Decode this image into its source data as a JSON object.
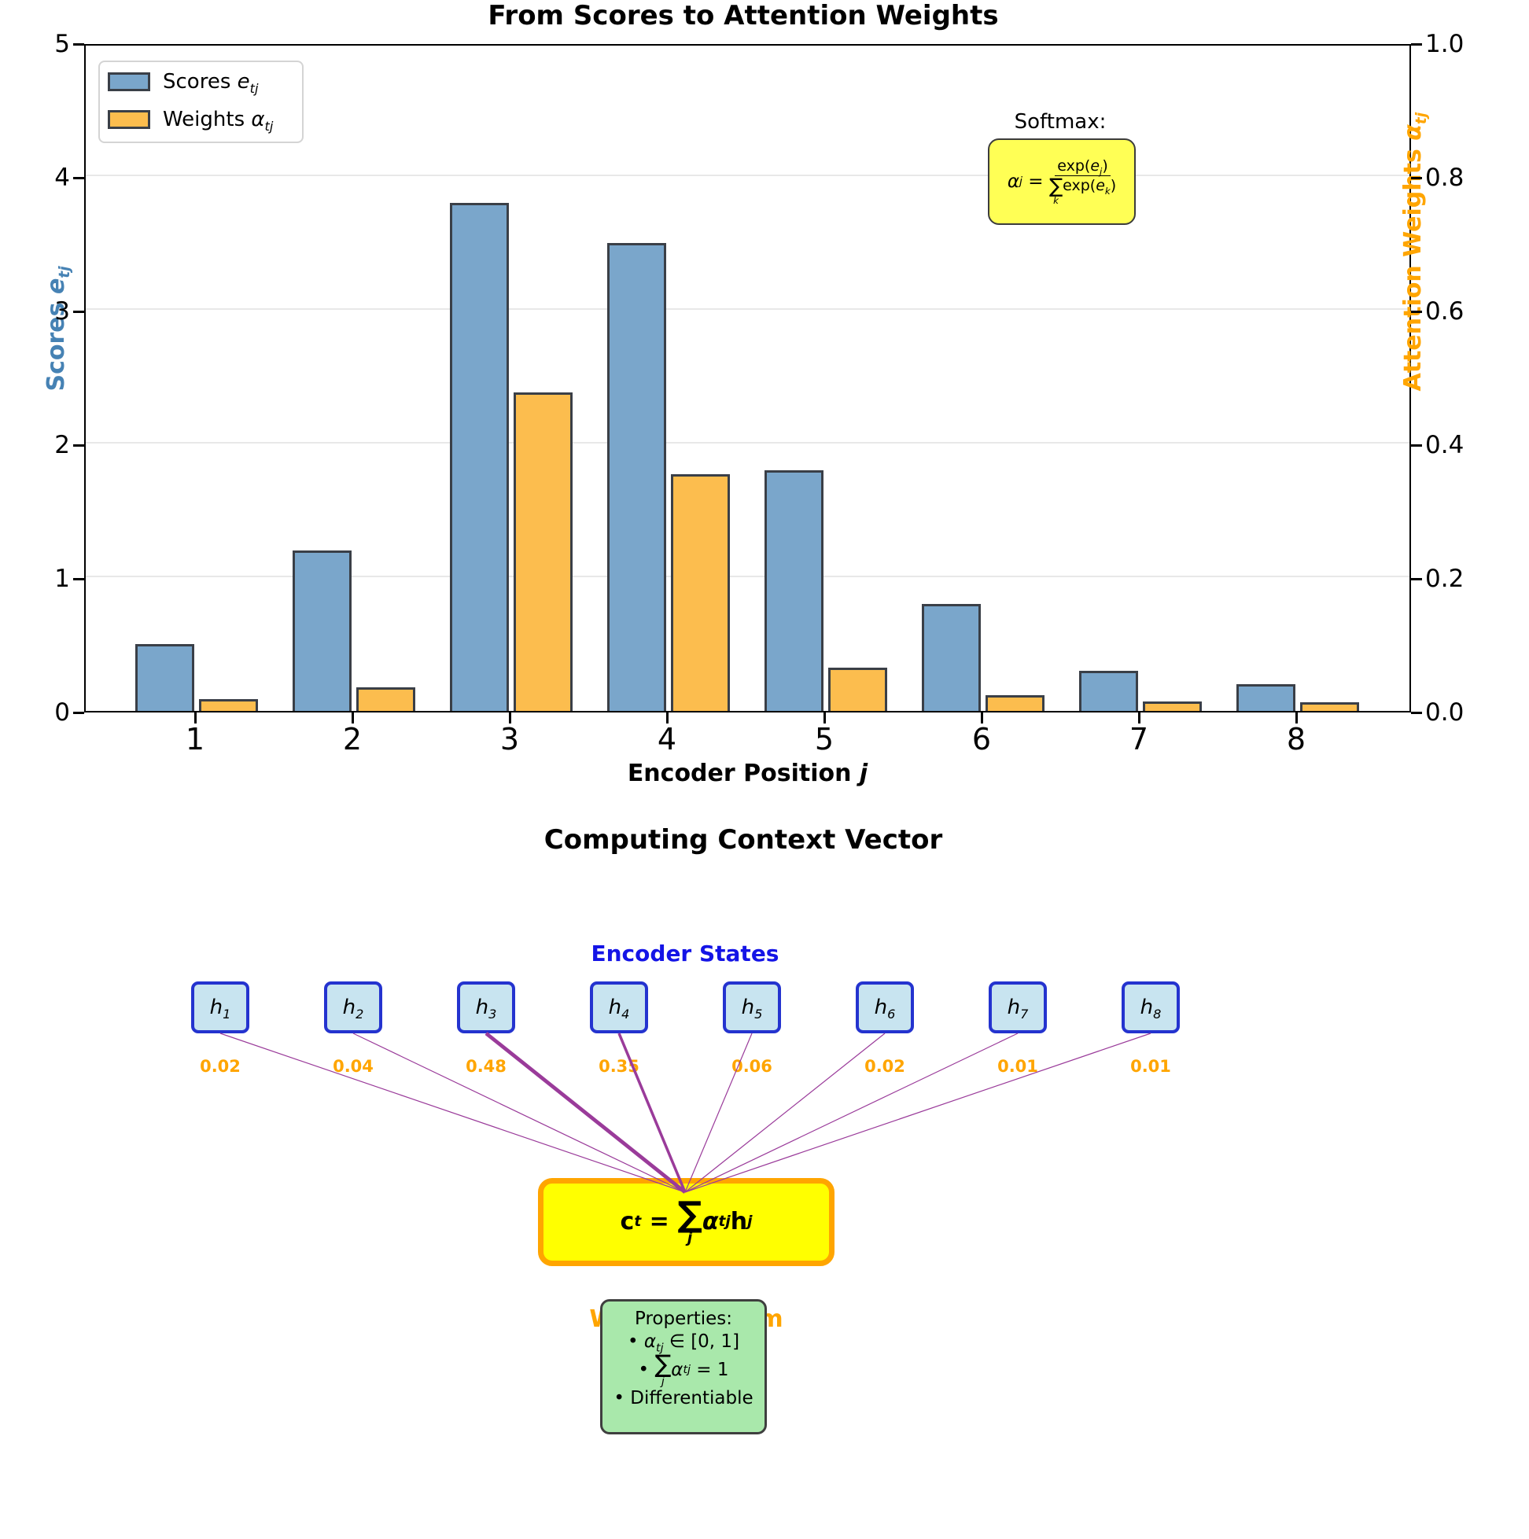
{
  "chart_data": {
    "type": "bar",
    "title": "From Scores to Attention Weights",
    "xlabel": {
      "text": "Encoder Position ",
      "math": "j"
    },
    "ylabel_left": {
      "text": "Scores ",
      "math": "e",
      "sub": "tj",
      "color": "#4682b4"
    },
    "ylabel_right": {
      "text": "Attention Weights ",
      "math": "α",
      "sub": "tj",
      "color": "#ffa500"
    },
    "categories": [
      "1",
      "2",
      "3",
      "4",
      "5",
      "6",
      "7",
      "8"
    ],
    "series": [
      {
        "name": "Scores e_tj",
        "axis": "left",
        "color": "#7aa6cb",
        "values": [
          0.5,
          1.2,
          3.8,
          3.5,
          1.8,
          0.8,
          0.3,
          0.2
        ]
      },
      {
        "name": "Weights α_tj",
        "axis": "right",
        "color": "#fcbd4e",
        "values": [
          0.018,
          0.035,
          0.477,
          0.354,
          0.065,
          0.024,
          0.014,
          0.013
        ]
      }
    ],
    "ylim_left": [
      0,
      5
    ],
    "ylim_right": [
      0,
      1
    ],
    "yticks_left": [
      "5",
      "4",
      "3",
      "2",
      "1",
      "0"
    ],
    "yticks_right": [
      "1.0",
      "0.8",
      "0.6",
      "0.4",
      "0.2",
      "0.0"
    ],
    "grid": true,
    "legend_position": "upper left"
  },
  "legend": {
    "entries": [
      {
        "text": "Scores ",
        "math": "e",
        "sub": "tj",
        "color": "#7aa6cb"
      },
      {
        "text": "Weights ",
        "math": "α",
        "sub": "tj",
        "color": "#fcbd4e"
      }
    ]
  },
  "softmax_note": {
    "heading": "Softmax:",
    "alpha": "α",
    "alpha_sub": "j",
    "equals": " = ",
    "num_pre": "exp(",
    "num_var": "e",
    "num_sub": "j",
    "num_post": ")",
    "den_sigma": "∑",
    "den_sigma_sub": "k",
    "den_pre": "exp(",
    "den_var": "e",
    "den_sub": "k",
    "den_post": ")"
  },
  "diagram": {
    "title": "Computing Context Vector",
    "encoder_states_title": "Encoder States",
    "nodes": [
      {
        "var": "h",
        "sub": "1",
        "weight": "0.02"
      },
      {
        "var": "h",
        "sub": "2",
        "weight": "0.04"
      },
      {
        "var": "h",
        "sub": "3",
        "weight": "0.48"
      },
      {
        "var": "h",
        "sub": "4",
        "weight": "0.35"
      },
      {
        "var": "h",
        "sub": "5",
        "weight": "0.06"
      },
      {
        "var": "h",
        "sub": "6",
        "weight": "0.02"
      },
      {
        "var": "h",
        "sub": "7",
        "weight": "0.01"
      },
      {
        "var": "h",
        "sub": "8",
        "weight": "0.01"
      }
    ],
    "line_color": "#9a3b9a",
    "context_formula": {
      "c": "c",
      "c_sub": "t",
      "equals": " = ",
      "sigma": "∑",
      "sigma_sub": "j",
      "alpha": "α",
      "alpha_sub": "tj",
      "h": "h",
      "h_sub": "j"
    },
    "weighted_sum_label": "Weighted Sum",
    "properties": {
      "heading": "Properties:",
      "bullet1": {
        "bullet": "• ",
        "alpha": "α",
        "sub": "tj",
        "rest": " ∈ [0, 1]"
      },
      "bullet2": {
        "bullet": "• ",
        "sigma": "∑",
        "sigma_sub": "j",
        "alpha": "α",
        "alpha_sub": "tj",
        "rest": " = 1"
      },
      "bullet3": {
        "bullet": "• ",
        "text": "Differentiable"
      }
    }
  }
}
